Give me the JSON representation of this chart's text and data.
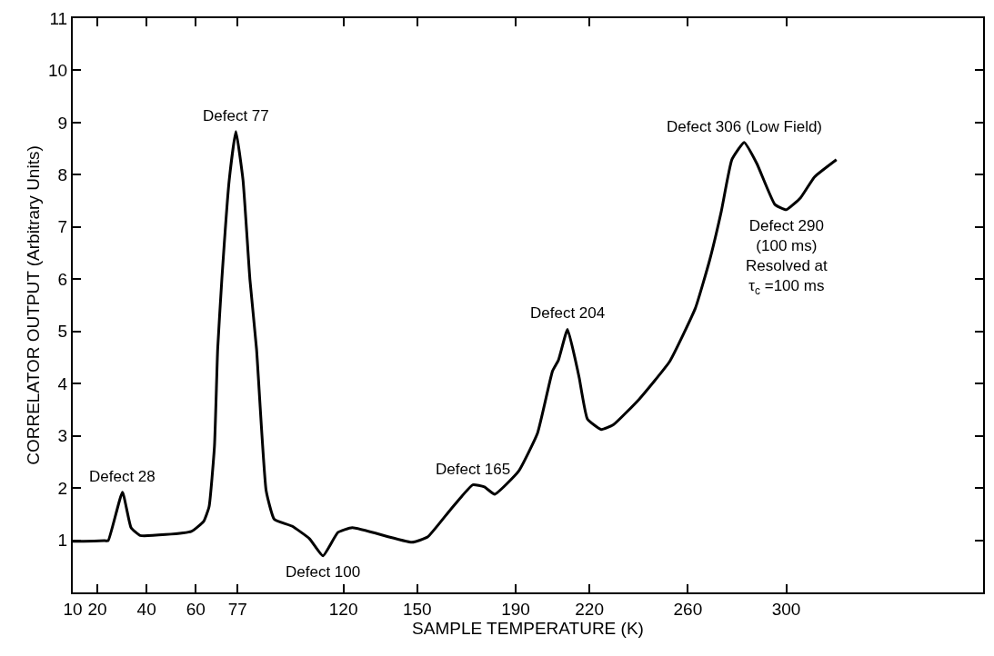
{
  "chart_data": {
    "type": "line",
    "xlabel": "SAMPLE TEMPERATURE (K)",
    "ylabel": "CORRELATOR OUTPUT (Arbitrary Units)",
    "series": [
      {
        "color": "#000000",
        "x": [
          10,
          14.4,
          23.0,
          24.4,
          30.2,
          33.7,
          37.4,
          58.2,
          63.2,
          65.4,
          67.6,
          68.9,
          70.6,
          73.6,
          76.3,
          79.2,
          82.0,
          84.7,
          88.6,
          91.9,
          99.1,
          106.2,
          111.7,
          117.8,
          123.6,
          147.9,
          154.2,
          163.6,
          172.6,
          177.3,
          181.5,
          191.2,
          198.9,
          205.0,
          207.4,
          211.1,
          214.3,
          215.9,
          219.2,
          224.8,
          229.7,
          240.2,
          252.7,
          263.1,
          268.9,
          273.6,
          277.9,
          282.9,
          288.0,
          295.4,
          300.0,
          305.8,
          311.5,
          320.4
        ],
        "values": [
          0.98,
          0.98,
          0.99,
          0.99,
          1.92,
          1.24,
          1.09,
          1.17,
          1.36,
          1.64,
          2.8,
          4.66,
          6.0,
          7.9,
          8.83,
          7.9,
          6.0,
          4.66,
          1.95,
          1.4,
          1.27,
          1.03,
          0.7,
          1.15,
          1.24,
          0.96,
          1.06,
          1.59,
          2.06,
          2.02,
          1.88,
          2.32,
          3.05,
          4.24,
          4.45,
          5.04,
          4.45,
          4.1,
          3.32,
          3.12,
          3.21,
          3.7,
          4.43,
          5.45,
          6.37,
          7.3,
          8.29,
          8.62,
          8.22,
          7.43,
          7.33,
          7.56,
          7.96,
          8.29
        ]
      }
    ],
    "annotations": [
      {
        "text": "Defect 28",
        "x": 30.2,
        "y": 1.92
      },
      {
        "text": "Defect 77",
        "x": 76.3,
        "y": 8.83
      },
      {
        "text": "Defect 100",
        "x": 111.7,
        "y": 0.7
      },
      {
        "text": "Defect 165",
        "x": 172.6,
        "y": 2.06
      },
      {
        "text": "Defect 204",
        "x": 211.1,
        "y": 5.04
      },
      {
        "text": "Defect 306 (Low Field)",
        "x": 282.9,
        "y": 8.62
      },
      {
        "text": "Defect 290\n(100 ms)\nResolved at\nτ$_{c}$ =100 ms",
        "x": 300.0,
        "y": 7.33
      }
    ],
    "xlim": [
      10,
      380
    ],
    "ylim": [
      0,
      11
    ],
    "xticks": [
      10,
      20,
      40,
      60,
      77,
      120,
      150,
      190,
      220,
      260,
      300
    ],
    "yticks": [
      1,
      2,
      3,
      4,
      5,
      6,
      7,
      8,
      9,
      10,
      11
    ],
    "marker": "none",
    "line_style": "solid"
  }
}
